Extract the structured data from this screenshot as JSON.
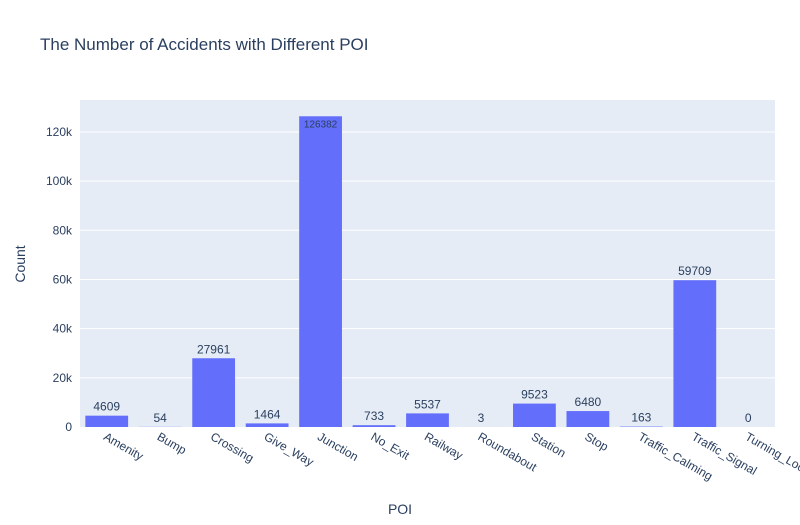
{
  "chart_data": {
    "type": "bar",
    "title": "The Number of Accidents with Different POI",
    "xlabel": "POI",
    "ylabel": "Count",
    "categories": [
      "Amenity",
      "Bump",
      "Crossing",
      "Give_Way",
      "Junction",
      "No_Exit",
      "Railway",
      "Roundabout",
      "Station",
      "Stop",
      "Traffic_Calming",
      "Traffic_Signal",
      "Turning_Loop"
    ],
    "values": [
      4609,
      54,
      27961,
      1464,
      126382,
      733,
      5537,
      3,
      9523,
      6480,
      163,
      59709,
      0
    ],
    "data_labels": [
      "4609",
      "54",
      "27961",
      "1464",
      "126382",
      "733",
      "5537",
      "3",
      "9523",
      "6480",
      "163",
      "59709",
      "0"
    ],
    "ylim": [
      0,
      133000
    ],
    "yticks": [
      0,
      20000,
      40000,
      60000,
      80000,
      100000,
      120000
    ],
    "ytick_labels": [
      "0",
      "20k",
      "40k",
      "60k",
      "80k",
      "100k",
      "120k"
    ],
    "grid": true,
    "bar_color": "#636efa",
    "plot_bg": "#e5ecf6"
  }
}
